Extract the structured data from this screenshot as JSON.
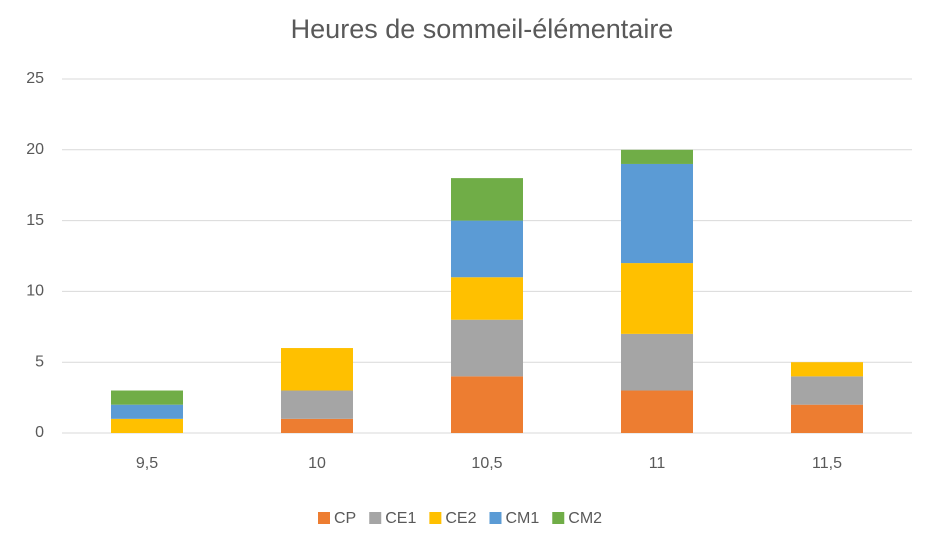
{
  "chart_data": {
    "type": "stacked_bar",
    "title": "Heures de sommeil-élémentaire",
    "categories": [
      "9,5",
      "10",
      "10,5",
      "11",
      "11,5"
    ],
    "series": [
      {
        "name": "CP",
        "color": "#ed7d31",
        "values": [
          0,
          1,
          4,
          3,
          2
        ]
      },
      {
        "name": "CE1",
        "color": "#a5a5a5",
        "values": [
          0,
          2,
          4,
          4,
          2
        ]
      },
      {
        "name": "CE2",
        "color": "#ffc000",
        "values": [
          1,
          3,
          3,
          5,
          1
        ]
      },
      {
        "name": "CM1",
        "color": "#5b9bd5",
        "values": [
          1,
          0,
          4,
          7,
          0
        ]
      },
      {
        "name": "CM2",
        "color": "#70ad47",
        "values": [
          1,
          0,
          3,
          1,
          0
        ]
      }
    ],
    "ylim": [
      0,
      25
    ],
    "yticks": [
      0,
      5,
      10,
      15,
      20,
      25
    ],
    "grid": true,
    "legend": "bottom"
  }
}
